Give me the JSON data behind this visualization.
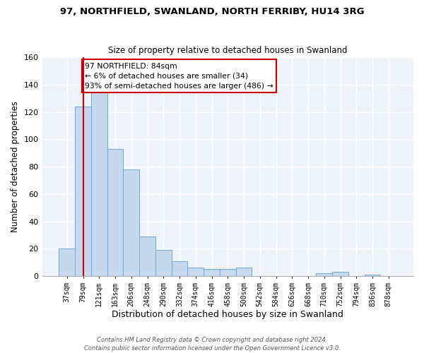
{
  "title": "97, NORTHFIELD, SWANLAND, NORTH FERRIBY, HU14 3RG",
  "subtitle": "Size of property relative to detached houses in Swanland",
  "xlabel": "Distribution of detached houses by size in Swanland",
  "ylabel": "Number of detached properties",
  "bar_color": "#c5d8ee",
  "bar_edge_color": "#6aaad4",
  "background_color": "#eef2f9",
  "categories": [
    "37sqm",
    "79sqm",
    "121sqm",
    "163sqm",
    "206sqm",
    "248sqm",
    "290sqm",
    "332sqm",
    "374sqm",
    "416sqm",
    "458sqm",
    "500sqm",
    "542sqm",
    "584sqm",
    "626sqm",
    "668sqm",
    "710sqm",
    "752sqm",
    "794sqm",
    "836sqm",
    "878sqm"
  ],
  "values": [
    20,
    124,
    134,
    93,
    78,
    29,
    19,
    11,
    6,
    5,
    5,
    6,
    0,
    0,
    0,
    0,
    2,
    3,
    0,
    1,
    0
  ],
  "ylim": [
    0,
    160
  ],
  "yticks": [
    0,
    20,
    40,
    60,
    80,
    100,
    120,
    140,
    160
  ],
  "vline_x": 1.0,
  "vline_color": "#cc0000",
  "annotation_text": "97 NORTHFIELD: 84sqm\n← 6% of detached houses are smaller (34)\n93% of semi-detached houses are larger (486) →",
  "annotation_edge_color": "#cc0000",
  "footer_line1": "Contains HM Land Registry data © Crown copyright and database right 2024.",
  "footer_line2": "Contains public sector information licensed under the Open Government Licence v3.0."
}
